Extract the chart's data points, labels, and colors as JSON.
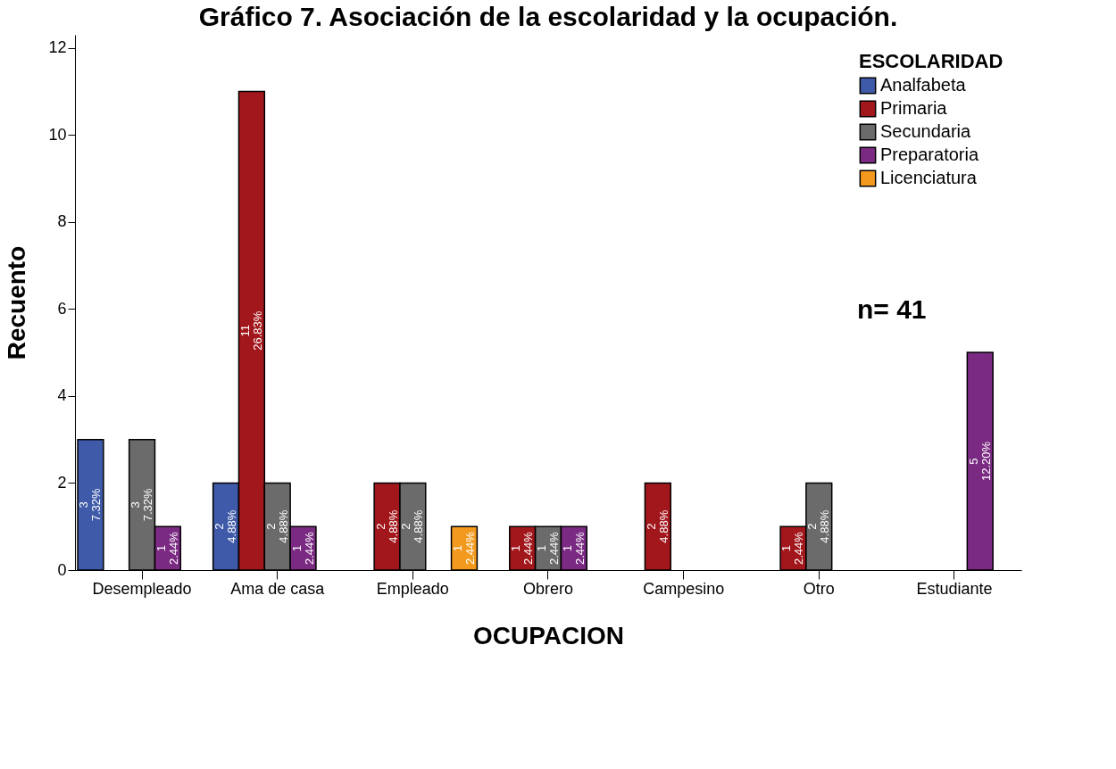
{
  "chart_data": {
    "type": "bar",
    "title": "Gráfico 7. Asociación de la escolaridad y la ocupación.",
    "xlabel": "OCUPACION",
    "ylabel": "Recuento",
    "legend_title": "ESCOLARIDAD",
    "legend": "top right",
    "annotations": [
      "n= 41"
    ],
    "categories": [
      "Desempleado",
      "Ama de casa",
      "Empleado",
      "Obrero",
      "Campesino",
      "Otro",
      "Estudiante"
    ],
    "ylim": [
      0,
      12.3
    ],
    "yticks": [
      0,
      2,
      4,
      6,
      8,
      10,
      12
    ],
    "series": [
      {
        "name": "Analfabeta",
        "color": "#3f5aa8",
        "values": [
          3,
          2,
          null,
          null,
          null,
          null,
          null
        ],
        "value_labels": [
          "3 7.32%",
          "2 4.88%",
          null,
          null,
          null,
          null,
          null
        ]
      },
      {
        "name": "Primaria",
        "color": "#a2171c",
        "values": [
          null,
          11,
          2,
          1,
          2,
          1,
          null
        ],
        "value_labels": [
          null,
          "11 26.83%",
          "2 4.88%",
          "1 2.44%",
          "2 4.88%",
          "1 2.44%",
          null
        ]
      },
      {
        "name": "Secundaria",
        "color": "#6b6b6b",
        "values": [
          3,
          2,
          2,
          1,
          null,
          2,
          null
        ],
        "value_labels": [
          "3 7.32%",
          "2 4.88%",
          "2 4.88%",
          "1 2.44%",
          null,
          "2 4.88%",
          null
        ]
      },
      {
        "name": "Preparatoria",
        "color": "#7a2a82",
        "values": [
          1,
          1,
          null,
          1,
          null,
          null,
          5
        ],
        "value_labels": [
          "1 2.44%",
          "1 2.44%",
          null,
          "1 2.44%",
          null,
          null,
          "5 12.20%"
        ]
      },
      {
        "name": "Licenciatura",
        "color": "#f39a1e",
        "values": [
          null,
          null,
          1,
          null,
          null,
          null,
          null
        ],
        "value_labels": [
          null,
          null,
          "1 2.44%",
          null,
          null,
          null,
          null
        ]
      }
    ]
  }
}
